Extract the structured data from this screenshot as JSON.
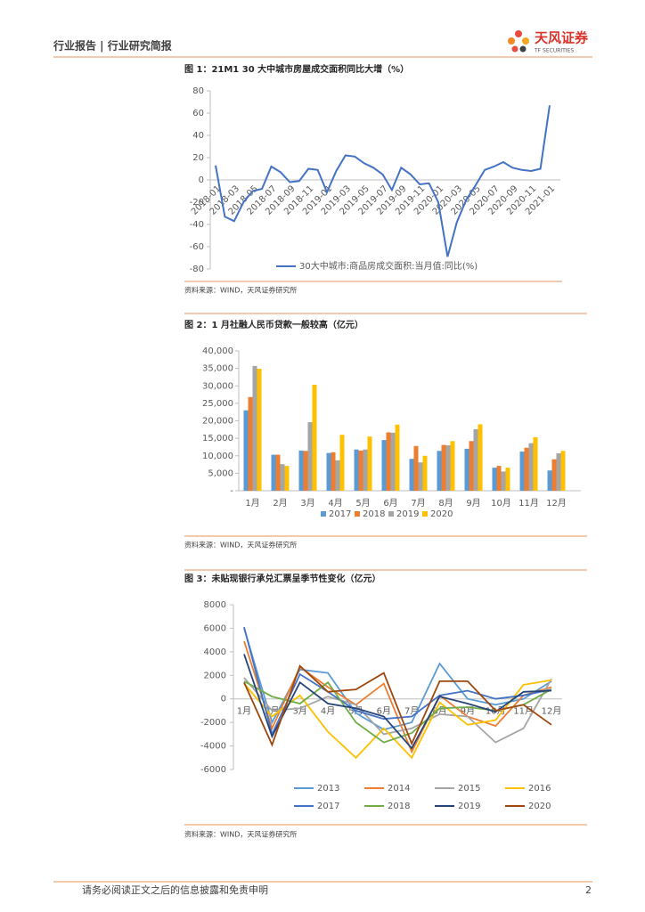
{
  "header": {
    "title": "行业报告 | 行业研究简报",
    "brand": "天风证券",
    "brand_en": "TF SECURITIES"
  },
  "chart_data": [
    {
      "type": "line",
      "title": "图 1：21M1 30 大中城市房屋成交面积同比大增（%）",
      "source": "资料来源：WIND，天风证券研究所",
      "categories": [
        "2018-01",
        null,
        "2018-03",
        null,
        "2018-05",
        null,
        "2018-07",
        null,
        "2018-09",
        null,
        "2018-11",
        null,
        "2019-01",
        null,
        "2019-03",
        null,
        "2019-05",
        null,
        "2019-07",
        null,
        "2019-09",
        null,
        "2019-11",
        null,
        "2020-01",
        null,
        "2020-03",
        null,
        "2020-05",
        null,
        "2020-07",
        null,
        "2020-09",
        null,
        "2020-11",
        null,
        "2021-01"
      ],
      "series": [
        {
          "name": "30大中城市:商品房成交面积:当月值:同比(%)",
          "color": "#4472c4",
          "values": [
            13,
            -33,
            -37,
            -20,
            -10,
            -8,
            12,
            7,
            -2,
            -1,
            10,
            9,
            -11,
            8,
            22,
            21,
            15,
            11,
            5,
            -9,
            11,
            5,
            -4,
            -3,
            -20,
            -69,
            -38,
            -18,
            -5,
            9,
            12,
            16,
            11,
            9,
            8,
            10,
            67
          ]
        }
      ],
      "ylim": [
        -80,
        80
      ],
      "yticks": [
        -80,
        -60,
        -40,
        -20,
        0,
        20,
        40,
        60,
        80
      ]
    },
    {
      "type": "bar",
      "title": "图 2：1 月社融人民币贷款一般较高（亿元）",
      "source": "资料来源：WIND，天风证券研究所",
      "categories": [
        "1月",
        "2月",
        "3月",
        "4月",
        "5月",
        "6月",
        "7月",
        "8月",
        "9月",
        "10月",
        "11月",
        "12月"
      ],
      "series": [
        {
          "name": "2017",
          "color": "#5b9bd5",
          "values": [
            23000,
            10300,
            11500,
            10800,
            11800,
            14500,
            9100,
            11400,
            12000,
            6600,
            11200,
            5800
          ]
        },
        {
          "name": "2018",
          "color": "#ed7d31",
          "values": [
            26800,
            10300,
            11400,
            11000,
            11500,
            16700,
            12800,
            13100,
            14200,
            7100,
            12300,
            9000
          ]
        },
        {
          "name": "2019",
          "color": "#a5a5a5",
          "values": [
            35700,
            7600,
            19600,
            8700,
            11800,
            16600,
            8100,
            13000,
            17600,
            5500,
            13600,
            10700
          ]
        },
        {
          "name": "2020",
          "color": "#ffc000",
          "values": [
            34900,
            7100,
            30300,
            16000,
            15500,
            18900,
            10000,
            14200,
            19000,
            6600,
            15300,
            11400
          ]
        }
      ],
      "ylim": [
        0,
        40000
      ],
      "yticks": [
        {
          "value": 0,
          "label": "-"
        },
        {
          "value": 5000,
          "label": "5,000"
        },
        {
          "value": 10000,
          "label": "10,000"
        },
        {
          "value": 15000,
          "label": "15,000"
        },
        {
          "value": 20000,
          "label": "20,000"
        },
        {
          "value": 25000,
          "label": "25,000"
        },
        {
          "value": 30000,
          "label": "30,000"
        },
        {
          "value": 35000,
          "label": "35,000"
        },
        {
          "value": 40000,
          "label": "40,000"
        }
      ]
    },
    {
      "type": "line",
      "title": "图 3：未贴现银行承兑汇票呈季节性变化（亿元）",
      "source": "资料来源：WIND，天风证券研究所",
      "categories": [
        "1月",
        "2月",
        "3月",
        "4月",
        "5月",
        "6月",
        "7月",
        "8月",
        "9月",
        "10月",
        "11月",
        "12月"
      ],
      "series": [
        {
          "name": "2013",
          "color": "#5b9bd5",
          "values": [
            6000,
            -2000,
            2500,
            2200,
            -1200,
            -2600,
            -2000,
            3000,
            0,
            -500,
            0,
            1500
          ]
        },
        {
          "name": "2014",
          "color": "#ed7d31",
          "values": [
            4900,
            -2500,
            2700,
            1000,
            -500,
            1300,
            -4500,
            300,
            -1500,
            -2300,
            300,
            1000
          ]
        },
        {
          "name": "2015",
          "color": "#a5a5a5",
          "values": [
            1800,
            -1000,
            -800,
            200,
            -500,
            -3000,
            -2500,
            -1300,
            -1500,
            -3700,
            -2500,
            1700
          ]
        },
        {
          "name": "2016",
          "color": "#ffc000",
          "values": [
            1300,
            -1500,
            300,
            -2800,
            -5000,
            -2500,
            -5000,
            -300,
            -2200,
            -1800,
            1200,
            1600
          ]
        },
        {
          "name": "2017",
          "color": "#4472c4",
          "values": [
            6100,
            -3000,
            2100,
            600,
            -1000,
            -1700,
            -1500,
            300,
            700,
            0,
            300,
            800
          ]
        },
        {
          "name": "2018",
          "color": "#70ad47",
          "values": [
            1500,
            200,
            -400,
            1400,
            -2000,
            -3700,
            -2900,
            -800,
            -700,
            -1000,
            -500,
            800
          ]
        },
        {
          "name": "2019",
          "color": "#264478",
          "values": [
            3800,
            -3200,
            1400,
            -400,
            -800,
            -1500,
            -4200,
            200,
            -400,
            -1100,
            600,
            700
          ]
        },
        {
          "name": "2020",
          "color": "#9e480e",
          "values": [
            1400,
            -3900,
            2800,
            600,
            800,
            2200,
            -3800,
            1500,
            1500,
            -1000,
            -500,
            -2200
          ]
        }
      ],
      "ylim": [
        -6000,
        8000
      ],
      "yticks": [
        -6000,
        -4000,
        -2000,
        0,
        2000,
        4000,
        6000,
        8000
      ]
    }
  ],
  "footer": {
    "disclaimer": "请务必阅读正文之后的信息披露和免责申明",
    "page": "2"
  }
}
